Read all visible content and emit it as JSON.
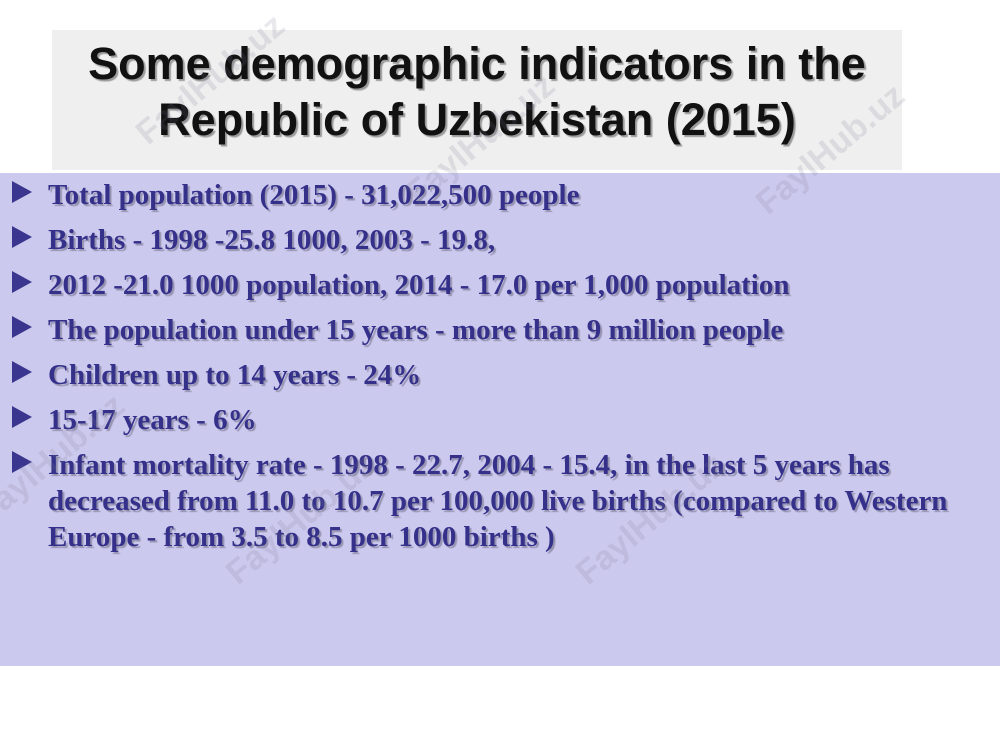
{
  "slide": {
    "title": "Some demographic indicators in the Republic of Uzbekistan (2015)",
    "bullets": [
      "Total population (2015) - 31,022,500 people",
      "Births - 1998 -25.8 1000, 2003 - 19.8,",
      "2012 -21.0 1000 population, 2014 - 17.0 per 1,000 population",
      "The population under 15 years - more than 9 million people",
      "Children up to 14 years - 24%",
      "15-17 years - 6%",
      "Infant mortality rate - 1998 - 22.7, 2004 - 15.4, in the last 5 years has decreased from 11.0 to 10.7 per 100,000 live births (compared to Western Europe - from 3.5 to 8.5 per 1000 births )"
    ],
    "watermark_text": "FaylHub.uz"
  },
  "colors": {
    "content_background": "#ccc9ee",
    "bullet_text": "#35318a",
    "title_box": "#efefef"
  }
}
